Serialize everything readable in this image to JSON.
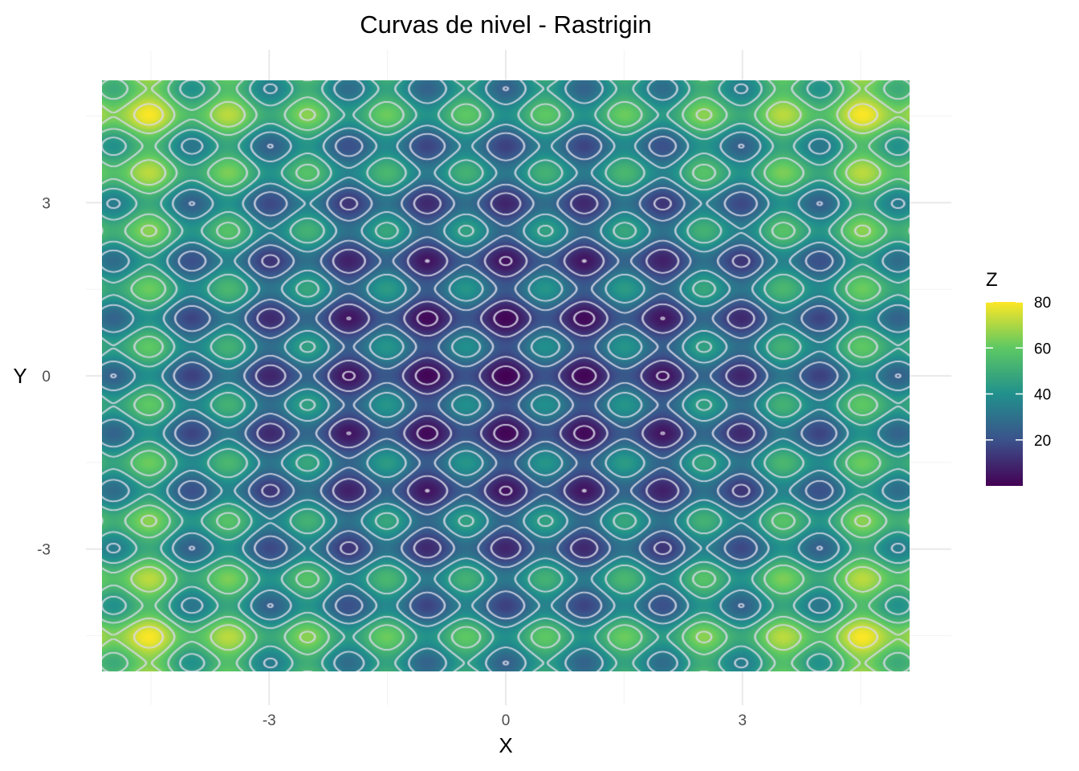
{
  "chart_data": {
    "type": "heatmap",
    "title": "Curvas de nivel - Rastrigin",
    "xlabel": "X",
    "ylabel": "Y",
    "function": "Rastrigin",
    "xlim": [
      -5.12,
      5.12
    ],
    "ylim": [
      -5.12,
      5.12
    ],
    "x_ticks": [
      -3,
      0,
      3
    ],
    "y_ticks": [
      -3,
      0,
      3
    ],
    "contours": true,
    "contour_color": "#d9d9e8",
    "colorscale": "viridis",
    "legend": {
      "title": "Z",
      "placement": "right",
      "range": [
        0,
        80
      ],
      "ticks": [
        20,
        40,
        60,
        80
      ]
    },
    "grid": true,
    "samples": [
      {
        "x": 0,
        "y": 0,
        "z": 0
      },
      {
        "x": 1,
        "y": 1,
        "z": 2
      },
      {
        "x": 4.5,
        "y": 4.5,
        "z": 80.5
      },
      {
        "x": -4.5,
        "y": -4.5,
        "z": 80.5
      },
      {
        "x": 3.5,
        "y": 3.5,
        "z": 70.5
      }
    ]
  }
}
